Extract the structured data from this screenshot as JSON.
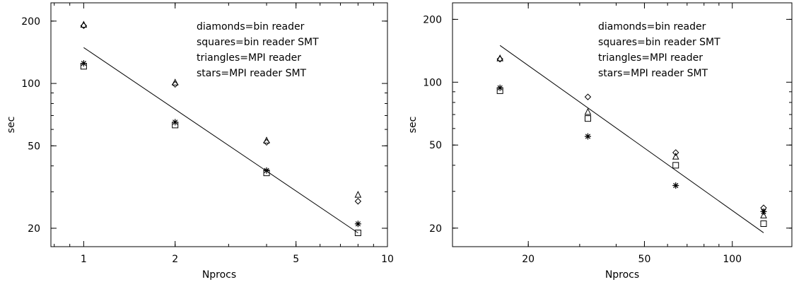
{
  "chart_data": [
    {
      "type": "scatter",
      "xlabel": "Nprocs",
      "ylabel": "sec",
      "x_scale": "log",
      "y_scale": "log",
      "xlim": [
        0.78,
        10
      ],
      "ylim": [
        16.3,
        245
      ],
      "x_ticks": [
        1,
        2,
        5,
        10
      ],
      "x_tick_labels": [
        "1",
        "2",
        "5",
        "10"
      ],
      "y_ticks": [
        20,
        50,
        100,
        200
      ],
      "y_tick_labels": [
        "20",
        "50",
        "100",
        "200"
      ],
      "grid": false,
      "legend": [
        "diamonds=bin reader",
        "squares=bin reader SMT",
        "triangles=MPI reader",
        "stars=MPI reader SMT"
      ],
      "legend_position": "top-right",
      "series": [
        {
          "marker": "diamond",
          "x": [
            1,
            2,
            4,
            8
          ],
          "y": [
            190,
            99,
            52,
            27
          ]
        },
        {
          "marker": "square",
          "x": [
            1,
            2,
            4,
            8
          ],
          "y": [
            121,
            63,
            37,
            19
          ]
        },
        {
          "marker": "triangle",
          "x": [
            1,
            2,
            4,
            8
          ],
          "y": [
            192,
            101,
            53,
            29
          ]
        },
        {
          "marker": "star",
          "x": [
            1,
            2,
            4,
            8
          ],
          "y": [
            125,
            65,
            38,
            21
          ]
        }
      ],
      "fit_line": {
        "x": [
          1,
          8
        ],
        "y": [
          149,
          19
        ]
      }
    },
    {
      "type": "scatter",
      "xlabel": "Nprocs",
      "ylabel": "sec",
      "x_scale": "log",
      "y_scale": "log",
      "xlim": [
        11,
        160
      ],
      "ylim": [
        16.3,
        240
      ],
      "x_ticks": [
        20,
        50,
        100
      ],
      "x_tick_labels": [
        "20",
        "50",
        "100"
      ],
      "y_ticks": [
        20,
        50,
        100,
        200
      ],
      "y_tick_labels": [
        "20",
        "50",
        "100",
        "200"
      ],
      "grid": false,
      "legend": [
        "diamonds=bin reader",
        "squares=bin reader SMT",
        "triangles=MPI reader",
        "stars=MPI reader SMT"
      ],
      "legend_position": "top-right",
      "series": [
        {
          "marker": "diamond",
          "x": [
            16,
            32,
            64,
            128
          ],
          "y": [
            129,
            85,
            46,
            25
          ]
        },
        {
          "marker": "square",
          "x": [
            16,
            32,
            64,
            128
          ],
          "y": [
            91,
            67,
            40,
            21
          ]
        },
        {
          "marker": "triangle",
          "x": [
            16,
            32,
            64,
            128
          ],
          "y": [
            130,
            72,
            44,
            23
          ]
        },
        {
          "marker": "star",
          "x": [
            16,
            32,
            64,
            128
          ],
          "y": [
            94,
            55,
            32,
            24
          ]
        }
      ],
      "fit_line": {
        "x": [
          16,
          128
        ],
        "y": [
          150,
          19
        ]
      }
    }
  ]
}
